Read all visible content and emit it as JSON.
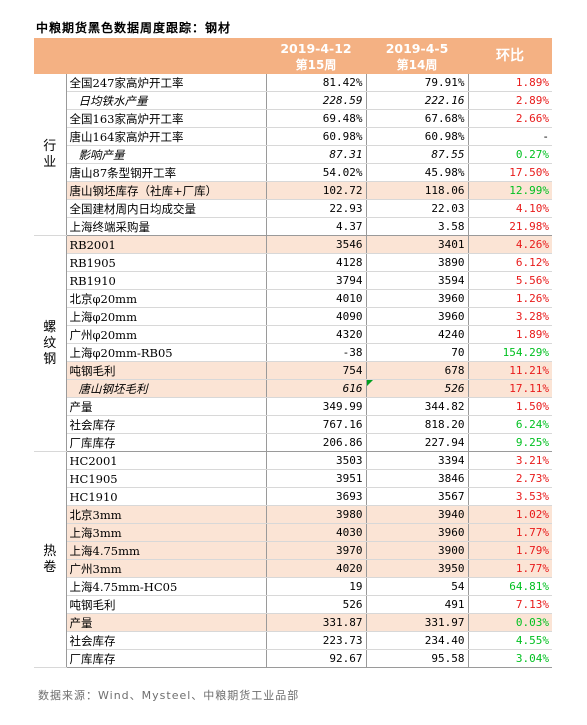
{
  "title": "中粮期货黑色数据周度跟踪：钢材",
  "header": {
    "col1_date": "2019-4-12",
    "col1_week": "第15周",
    "col2_date": "2019-4-5",
    "col2_week": "第14周",
    "change": "环比"
  },
  "sections": [
    {
      "name_chars": [
        "行",
        "业"
      ],
      "rows": [
        {
          "label": "全国247家高炉开工率",
          "v1": "81.42%",
          "v2": "79.91%",
          "chg": "1.89%",
          "color": "red",
          "italic": false,
          "hl": false
        },
        {
          "label": "日均铁水产量",
          "v1": "228.59",
          "v2": "222.16",
          "chg": "2.89%",
          "color": "red",
          "italic": true,
          "hl": false
        },
        {
          "label": "全国163家高炉开工率",
          "v1": "69.48%",
          "v2": "67.68%",
          "chg": "2.66%",
          "color": "red",
          "italic": false,
          "hl": false
        },
        {
          "label": "唐山164家高炉开工率",
          "v1": "60.98%",
          "v2": "60.98%",
          "chg": "-",
          "color": "black",
          "italic": false,
          "hl": false
        },
        {
          "label": "影响产量",
          "v1": "87.31",
          "v2": "87.55",
          "chg": "0.27%",
          "color": "green",
          "italic": true,
          "hl": false
        },
        {
          "label": "唐山87条型钢开工率",
          "v1": "54.02%",
          "v2": "45.98%",
          "chg": "17.50%",
          "color": "red",
          "italic": false,
          "hl": false
        },
        {
          "label": "唐山钢坯库存（社库+厂库）",
          "v1": "102.72",
          "v2": "118.06",
          "chg": "12.99%",
          "color": "green",
          "italic": false,
          "hl": true
        },
        {
          "label": "全国建材周内日均成交量",
          "v1": "22.93",
          "v2": "22.03",
          "chg": "4.10%",
          "color": "red",
          "italic": false,
          "hl": false
        },
        {
          "label": "上海终端采购量",
          "v1": "4.37",
          "v2": "3.58",
          "chg": "21.98%",
          "color": "red",
          "italic": false,
          "hl": false
        }
      ]
    },
    {
      "name_chars": [
        "螺",
        "纹",
        "钢"
      ],
      "rows": [
        {
          "label": "RB2001",
          "v1": "3546",
          "v2": "3401",
          "chg": "4.26%",
          "color": "red",
          "italic": false,
          "hl": true
        },
        {
          "label": "RB1905",
          "v1": "4128",
          "v2": "3890",
          "chg": "6.12%",
          "color": "red",
          "italic": false,
          "hl": false
        },
        {
          "label": "RB1910",
          "v1": "3794",
          "v2": "3594",
          "chg": "5.56%",
          "color": "red",
          "italic": false,
          "hl": false
        },
        {
          "label": "北京φ20mm",
          "v1": "4010",
          "v2": "3960",
          "chg": "1.26%",
          "color": "red",
          "italic": false,
          "hl": false
        },
        {
          "label": "上海φ20mm",
          "v1": "4090",
          "v2": "3960",
          "chg": "3.28%",
          "color": "red",
          "italic": false,
          "hl": false
        },
        {
          "label": "广州φ20mm",
          "v1": "4320",
          "v2": "4240",
          "chg": "1.89%",
          "color": "red",
          "italic": false,
          "hl": false
        },
        {
          "label": "上海φ20mm-RB05",
          "v1": "-38",
          "v2": "70",
          "chg": "154.29%",
          "color": "green",
          "italic": false,
          "hl": false
        },
        {
          "label": "吨钢毛利",
          "v1": "754",
          "v2": "678",
          "chg": "11.21%",
          "color": "red",
          "italic": false,
          "hl": true
        },
        {
          "label": "唐山钢坯毛利",
          "v1": "616",
          "v2": "526",
          "chg": "17.11%",
          "color": "red",
          "italic": true,
          "hl": true
        },
        {
          "label": "产量",
          "v1": "349.99",
          "v2": "344.82",
          "chg": "1.50%",
          "color": "red",
          "italic": false,
          "hl": false
        },
        {
          "label": "社会库存",
          "v1": "767.16",
          "v2": "818.20",
          "chg": "6.24%",
          "color": "green",
          "italic": false,
          "hl": false
        },
        {
          "label": "厂库库存",
          "v1": "206.86",
          "v2": "227.94",
          "chg": "9.25%",
          "color": "green",
          "italic": false,
          "hl": false
        }
      ]
    },
    {
      "name_chars": [
        "热",
        "卷"
      ],
      "rows": [
        {
          "label": "HC2001",
          "v1": "3503",
          "v2": "3394",
          "chg": "3.21%",
          "color": "red",
          "italic": false,
          "hl": false
        },
        {
          "label": "HC1905",
          "v1": "3951",
          "v2": "3846",
          "chg": "2.73%",
          "color": "red",
          "italic": false,
          "hl": false
        },
        {
          "label": "HC1910",
          "v1": "3693",
          "v2": "3567",
          "chg": "3.53%",
          "color": "red",
          "italic": false,
          "hl": false
        },
        {
          "label": "北京3mm",
          "v1": "3980",
          "v2": "3940",
          "chg": "1.02%",
          "color": "red",
          "italic": false,
          "hl": true
        },
        {
          "label": "上海3mm",
          "v1": "4030",
          "v2": "3960",
          "chg": "1.77%",
          "color": "red",
          "italic": false,
          "hl": true
        },
        {
          "label": "上海4.75mm",
          "v1": "3970",
          "v2": "3900",
          "chg": "1.79%",
          "color": "red",
          "italic": false,
          "hl": true
        },
        {
          "label": "广州3mm",
          "v1": "4020",
          "v2": "3950",
          "chg": "1.77%",
          "color": "red",
          "italic": false,
          "hl": true
        },
        {
          "label": "上海4.75mm-HC05",
          "v1": "19",
          "v2": "54",
          "chg": "64.81%",
          "color": "green",
          "italic": false,
          "hl": false
        },
        {
          "label": "吨钢毛利",
          "v1": "526",
          "v2": "491",
          "chg": "7.13%",
          "color": "red",
          "italic": false,
          "hl": false
        },
        {
          "label": "产量",
          "v1": "331.87",
          "v2": "331.97",
          "chg": "0.03%",
          "color": "green",
          "italic": false,
          "hl": true
        },
        {
          "label": "社会库存",
          "v1": "223.73",
          "v2": "234.40",
          "chg": "4.55%",
          "color": "green",
          "italic": false,
          "hl": false
        },
        {
          "label": "厂库库存",
          "v1": "92.67",
          "v2": "95.58",
          "chg": "3.04%",
          "color": "green",
          "italic": false,
          "hl": false
        }
      ]
    }
  ],
  "source": "数据来源：Wind、Mysteel、中粮期货工业品部",
  "colors": {
    "header_bg": "#f4b183",
    "highlight_bg": "#fbe4d5",
    "up_red": "#e81a1a",
    "down_green": "#00c020"
  }
}
